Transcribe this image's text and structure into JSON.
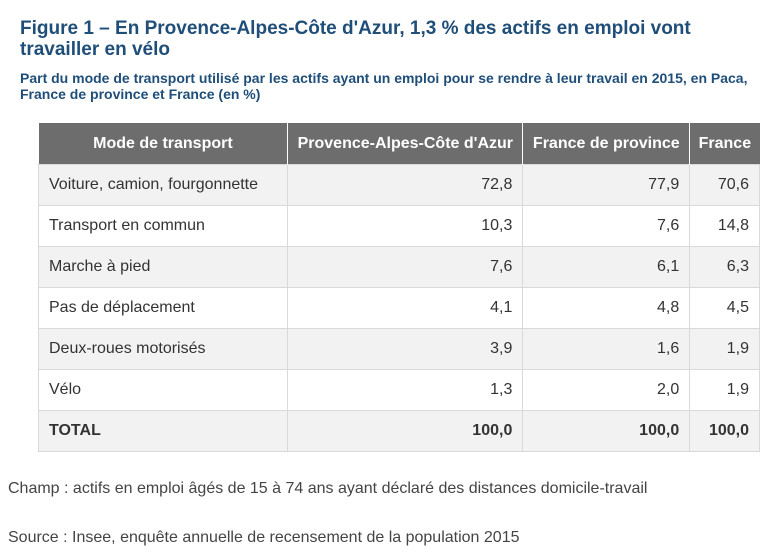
{
  "figure": {
    "title": "Figure 1 – En Provence-Alpes-Côte d'Azur, 1,3 % des actifs en emploi vont travailler en vélo",
    "subtitle": "Part du mode de transport utilisé par les actifs ayant un emploi pour se rendre à leur travail en 2015, en Paca, France de province et France (en %)"
  },
  "table": {
    "headers": [
      "Mode de transport",
      "Provence-Alpes-Côte d'Azur",
      "France de province",
      "France"
    ],
    "rows": [
      [
        "Voiture, camion, fourgonnette",
        "72,8",
        "77,9",
        "70,6"
      ],
      [
        "Transport en commun",
        "10,3",
        "7,6",
        "14,8"
      ],
      [
        "Marche à pied",
        "7,6",
        "6,1",
        "6,3"
      ],
      [
        "Pas de déplacement",
        "4,1",
        "4,8",
        "4,5"
      ],
      [
        "Deux-roues motorisés",
        "3,9",
        "1,6",
        "1,9"
      ],
      [
        "Vélo",
        "1,3",
        "2,0",
        "1,9"
      ],
      [
        "TOTAL",
        "100,0",
        "100,0",
        "100,0"
      ]
    ]
  },
  "notes": {
    "champ": "Champ : actifs en emploi âgés de 15 à 74 ans ayant déclaré des distances domicile-travail",
    "source": "Source : Insee, enquête annuelle de recensement de la population 2015"
  }
}
